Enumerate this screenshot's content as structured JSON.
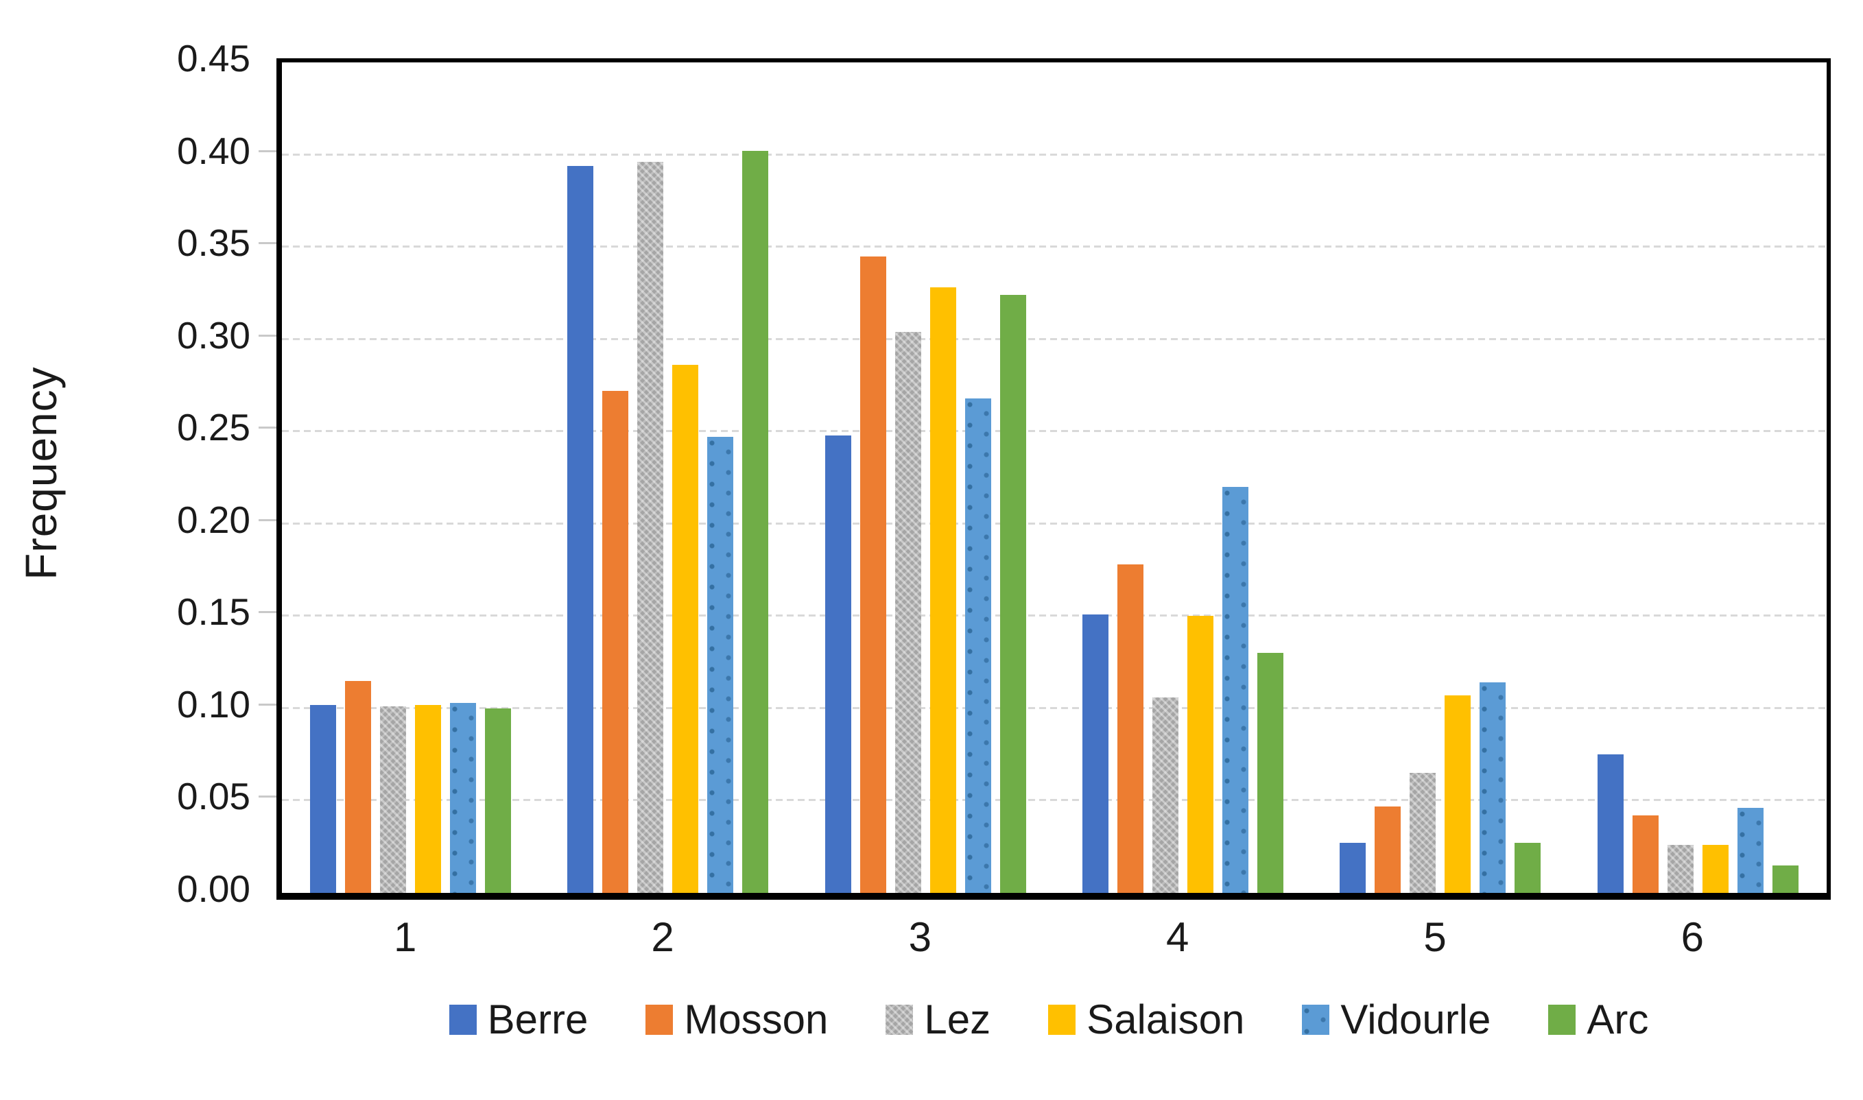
{
  "figure": {
    "background": "#ffffff",
    "axis_color": "#000000",
    "gridline_color": "#d9d9d9",
    "text_color": "#1a1a1a"
  },
  "chart_data": {
    "type": "bar",
    "title": "",
    "xlabel": "",
    "ylabel": "Frequency",
    "categories": [
      "1",
      "2",
      "3",
      "4",
      "5",
      "6"
    ],
    "series": [
      {
        "name": "Berre",
        "color": "#4472C4",
        "pattern": "solid",
        "values": [
          0.102,
          0.394,
          0.248,
          0.151,
          0.027,
          0.075
        ]
      },
      {
        "name": "Mosson",
        "color": "#ED7D31",
        "pattern": "solid",
        "values": [
          0.115,
          0.272,
          0.345,
          0.178,
          0.047,
          0.042
        ]
      },
      {
        "name": "Lez",
        "color": "#A5A5A5",
        "pattern": "weave",
        "values": [
          0.101,
          0.396,
          0.304,
          0.106,
          0.065,
          0.026
        ]
      },
      {
        "name": "Salaison",
        "color": "#FFC000",
        "pattern": "solid",
        "values": [
          0.102,
          0.286,
          0.328,
          0.15,
          0.107,
          0.026
        ]
      },
      {
        "name": "Vidourle",
        "color": "#5B9BD5",
        "pattern": "dots",
        "values": [
          0.103,
          0.247,
          0.268,
          0.22,
          0.114,
          0.046
        ]
      },
      {
        "name": "Arc",
        "color": "#70AD47",
        "pattern": "solid",
        "values": [
          0.1,
          0.402,
          0.324,
          0.13,
          0.027,
          0.015
        ]
      }
    ],
    "ylim": [
      0.0,
      0.45
    ],
    "ytick_step": 0.05,
    "ytick_labels": [
      "0.00",
      "0.05",
      "0.10",
      "0.15",
      "0.20",
      "0.25",
      "0.30",
      "0.35",
      "0.40",
      "0.45"
    ],
    "x_tick_labels": [
      "1",
      "2",
      "3",
      "4",
      "5",
      "6"
    ],
    "grid": "horizontal-dashed",
    "legend_position": "bottom"
  }
}
